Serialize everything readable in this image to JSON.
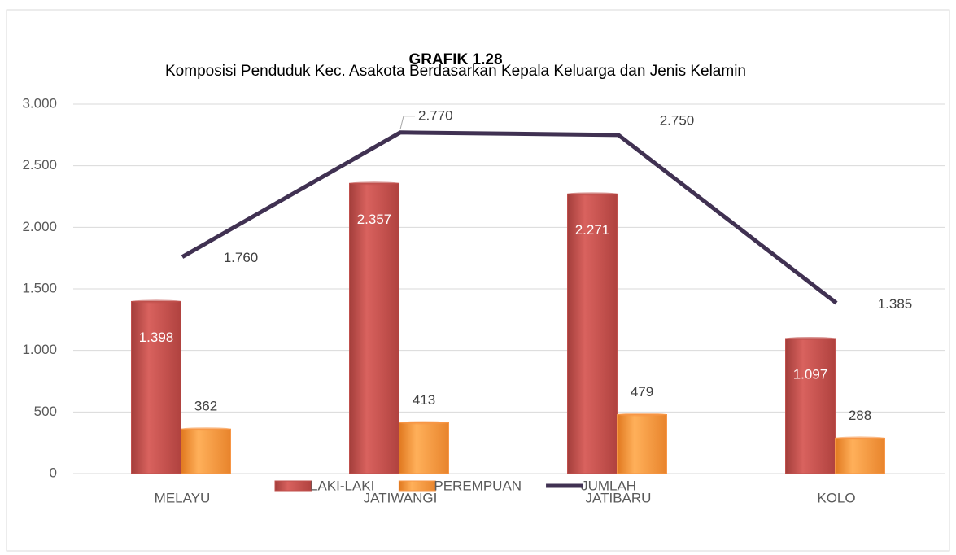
{
  "chart_data": {
    "type": "bar-line",
    "title": "GRAFIK 1.28",
    "subtitle": "Komposisi Penduduk Kec. Asakota Berdasarkan Kepala Keluarga dan Jenis Kelamin",
    "categories": [
      "MELAYU",
      "JATIWANGI",
      "JATIBARU",
      "KOLO"
    ],
    "series": [
      {
        "name": "LAKI-LAKI",
        "type": "bar",
        "color": "#c0504d",
        "values": [
          1398,
          2357,
          2271,
          1097
        ],
        "value_labels": [
          "1.398",
          "2.357",
          "2.271",
          "1.097"
        ]
      },
      {
        "name": "PEREMPUAN",
        "type": "bar",
        "color": "#f79646",
        "values": [
          362,
          413,
          479,
          288
        ]
      },
      {
        "name": "JUMLAH",
        "type": "line",
        "color": "#403152",
        "values": [
          1760,
          2770,
          2750,
          1385
        ],
        "value_labels": [
          "1.760",
          "2.770",
          "2.750",
          "1.385"
        ]
      }
    ],
    "ylim": [
      0,
      3000
    ],
    "yticks": [
      0,
      500,
      {
        "value": 1000,
        "label": "1.000"
      },
      {
        "value": 1500,
        "label": "1.500"
      },
      {
        "value": 2000,
        "label": "2.000"
      },
      {
        "value": 2500,
        "label": "2.500"
      },
      {
        "value": 3000,
        "label": "3.000"
      }
    ],
    "grid": true,
    "legend": "bottom"
  }
}
